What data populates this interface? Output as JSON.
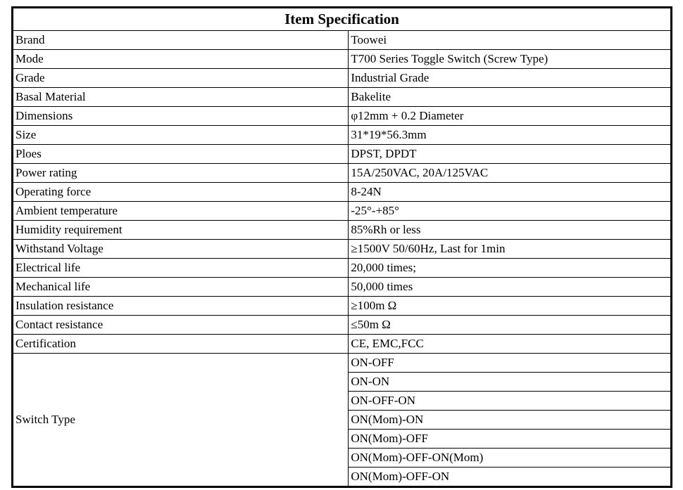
{
  "title": "Item Specification",
  "rows": [
    {
      "label": "Brand",
      "value": "Toowei"
    },
    {
      "label": "Mode",
      "value": "T700 Series Toggle Switch (Screw Type)"
    },
    {
      "label": "Grade",
      "value": "Industrial Grade"
    },
    {
      "label": "Basal Material",
      "value": "Bakelite"
    },
    {
      "label": "Dimensions",
      "value": "φ12mm + 0.2 Diameter"
    },
    {
      "label": "Size",
      "value": "31*19*56.3mm"
    },
    {
      "label": "Ploes",
      "value": "DPST, DPDT"
    },
    {
      "label": "Power rating",
      "value": "15A/250VAC, 20A/125VAC"
    },
    {
      "label": "Operating force",
      "value": "8-24N"
    },
    {
      "label": "Ambient temperature",
      "value": "-25°-+85°"
    },
    {
      "label": "Humidity requirement",
      "value": "85%Rh or less"
    },
    {
      "label": "Withstand Voltage",
      "value": "≥1500V 50/60Hz, Last for 1min"
    },
    {
      "label": "Electrical life",
      "value": "20,000 times;"
    },
    {
      "label": "Mechanical life",
      "value": "50,000 times"
    },
    {
      "label": "Insulation resistance",
      "value": "≥100m Ω"
    },
    {
      "label": "Contact resistance",
      "value": "≤50m Ω"
    },
    {
      "label": "Certification",
      "value": "CE, EMC,FCC"
    }
  ],
  "switch_type": {
    "label": "Switch Type",
    "values": [
      "ON-OFF",
      "ON-ON",
      "ON-OFF-ON",
      "ON(Mom)-ON",
      "ON(Mom)-OFF",
      "ON(Mom)-OFF-ON(Mom)",
      "ON(Mom)-OFF-ON"
    ]
  },
  "colors": {
    "border": "#000000",
    "background": "#ffffff",
    "text": "#000000"
  }
}
